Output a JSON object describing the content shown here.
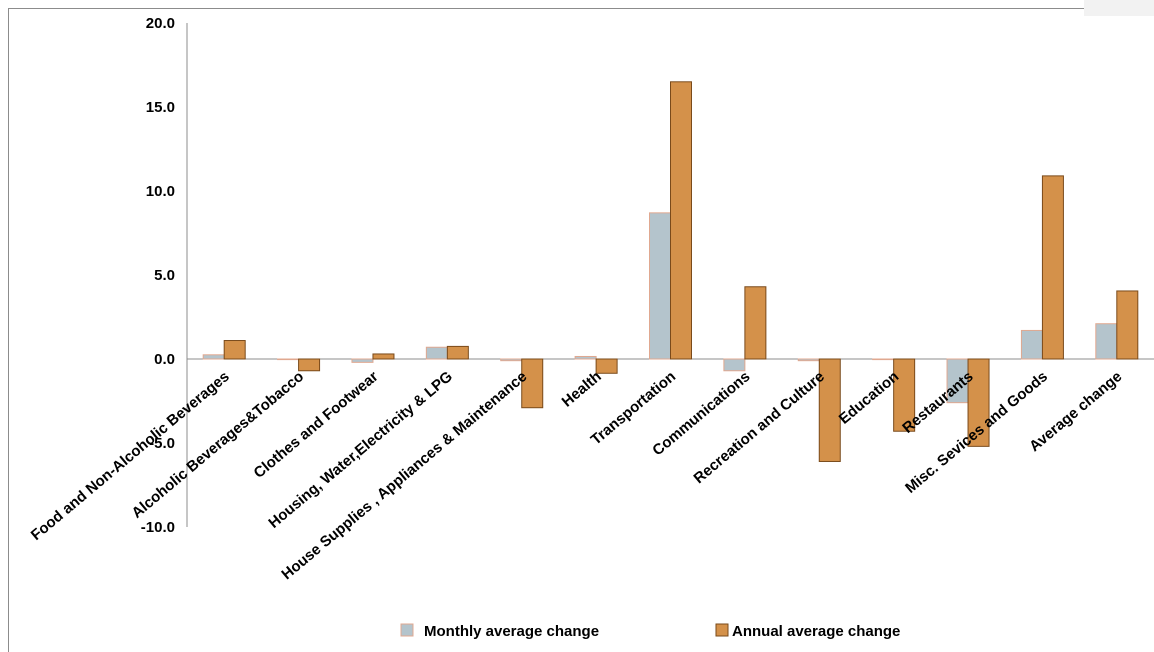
{
  "chart_data": {
    "type": "bar",
    "ylim": [
      -10,
      20
    ],
    "yticks": [
      "20.0",
      "15.0",
      "10.0",
      "5.0",
      "0.0",
      "-5.0",
      "-10.0"
    ],
    "categories": [
      "Food and Non-Alcoholic Beverages",
      "Alcoholic Beverages&Tobacco",
      "Clothes and Footwear",
      "Housing, Water,Electricity & LPG",
      "House Supplies , Appliances & Maintenance",
      "Health",
      "Transportation",
      "Communications",
      "Recreation and Culture",
      "Education",
      "Restaurants",
      "Misc. Sevices and Goods",
      "Average change"
    ],
    "series": [
      {
        "name": "Monthly average change",
        "color": "#b4c4cc",
        "border": "#e0a890",
        "values": [
          0.25,
          0.0,
          -0.2,
          0.7,
          -0.1,
          0.15,
          8.7,
          -0.7,
          -0.1,
          0.0,
          -2.6,
          1.7,
          2.1
        ]
      },
      {
        "name": "Annual average change",
        "color": "#d4914a",
        "border": "#7a4a1a",
        "values": [
          1.1,
          -0.7,
          0.3,
          0.75,
          -2.9,
          -0.85,
          16.5,
          4.3,
          -6.1,
          -4.3,
          -5.2,
          10.9,
          4.05
        ]
      }
    ],
    "legend": "bottom"
  }
}
